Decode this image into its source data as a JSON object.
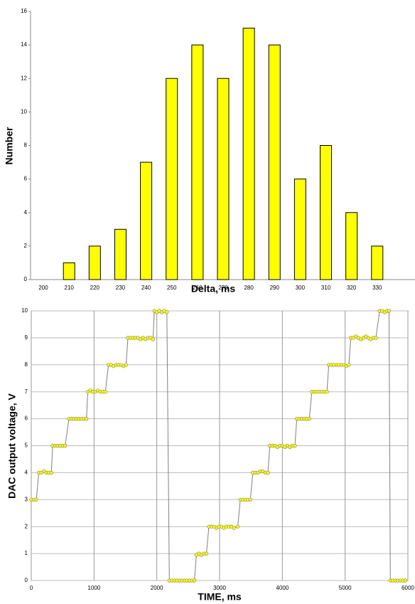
{
  "chart_data": [
    {
      "type": "bar",
      "x_label": "Delta, ms",
      "y_label": "Number",
      "categories": [
        "200",
        "210",
        "220",
        "230",
        "240",
        "250",
        "260",
        "270",
        "280",
        "290",
        "300",
        "310",
        "320",
        "330",
        null
      ],
      "values": [
        0,
        1,
        2,
        3,
        7,
        12,
        14,
        12,
        15,
        14,
        6,
        8,
        4,
        2,
        null
      ],
      "color": "#ffff00",
      "ylim": [
        0,
        16
      ],
      "yticks": [
        0,
        2,
        4,
        6,
        8,
        10,
        12,
        14,
        16
      ],
      "grid": false
    },
    {
      "type": "line",
      "x_label": "TIME, ms",
      "y_label": "DAC output voltage, V",
      "x": [
        0,
        40,
        80,
        120,
        160,
        200,
        240,
        280,
        320,
        340,
        380,
        420,
        460,
        500,
        540,
        600,
        640,
        680,
        720,
        760,
        800,
        840,
        880,
        900,
        940,
        980,
        1020,
        1060,
        1100,
        1140,
        1180,
        1230,
        1270,
        1310,
        1350,
        1390,
        1430,
        1470,
        1510,
        1540,
        1580,
        1620,
        1660,
        1700,
        1740,
        1780,
        1820,
        1860,
        1900,
        1940,
        1960,
        2000,
        2040,
        2080,
        2120,
        2160,
        2200,
        2240,
        2280,
        2320,
        2360,
        2400,
        2440,
        2480,
        2520,
        2560,
        2600,
        2630,
        2670,
        2710,
        2750,
        2790,
        2830,
        2870,
        2910,
        2950,
        2990,
        3030,
        3070,
        3110,
        3150,
        3190,
        3230,
        3290,
        3330,
        3370,
        3410,
        3450,
        3490,
        3530,
        3570,
        3610,
        3650,
        3690,
        3730,
        3770,
        3800,
        3840,
        3880,
        3920,
        3960,
        4000,
        4040,
        4080,
        4120,
        4160,
        4200,
        4230,
        4270,
        4310,
        4350,
        4390,
        4430,
        4470,
        4510,
        4550,
        4590,
        4630,
        4670,
        4710,
        4740,
        4780,
        4820,
        4860,
        4900,
        4940,
        4980,
        5020,
        5060,
        5090,
        5130,
        5170,
        5210,
        5250,
        5290,
        5330,
        5370,
        5410,
        5450,
        5490,
        5550,
        5590,
        5630,
        5670,
        5700,
        5720,
        5760,
        5800,
        5840,
        5880,
        5920,
        5960
      ],
      "values": [
        3,
        3,
        3,
        4,
        4,
        4.05,
        4,
        4,
        4,
        5,
        5,
        5,
        5,
        5,
        5,
        6,
        6,
        6,
        6,
        6,
        6,
        6,
        6,
        7,
        7.05,
        7,
        7,
        7.05,
        7,
        7,
        7,
        8,
        8,
        7.95,
        8,
        8,
        8,
        7.95,
        8,
        9,
        9,
        9,
        9,
        9,
        8.95,
        9,
        8.95,
        9,
        9,
        8.95,
        10,
        9.95,
        10,
        9.95,
        10,
        9.95,
        0,
        0,
        0,
        0,
        0,
        0,
        0,
        0,
        0,
        0,
        0,
        0.95,
        1,
        0.95,
        1,
        1,
        2,
        2,
        2,
        1.95,
        2,
        2,
        1.95,
        2,
        2,
        2,
        1.95,
        2,
        3,
        3,
        3,
        3,
        3,
        4,
        4,
        4,
        4.05,
        4.05,
        4,
        4,
        5,
        5,
        5,
        4.95,
        5,
        5,
        4.95,
        5,
        4.95,
        5,
        5,
        6,
        6,
        6,
        6,
        6,
        6,
        7,
        7,
        7,
        7,
        7,
        7,
        7,
        8,
        8,
        8,
        8,
        8,
        8,
        8,
        7.95,
        8,
        9,
        9,
        9.05,
        9,
        8.95,
        9,
        9.05,
        9,
        8.95,
        9,
        9,
        10,
        10,
        9.95,
        10,
        10,
        0,
        0,
        0,
        0,
        0,
        0,
        0
      ],
      "color": "#ffff00",
      "line_color": "#808080",
      "xlim": [
        0,
        6000
      ],
      "xticks": [
        0,
        1000,
        2000,
        3000,
        4000,
        5000,
        6000
      ],
      "ylim": [
        0,
        10
      ],
      "yticks": [
        0,
        1,
        2,
        3,
        4,
        5,
        6,
        7,
        8,
        9,
        10
      ],
      "grid": true
    }
  ]
}
